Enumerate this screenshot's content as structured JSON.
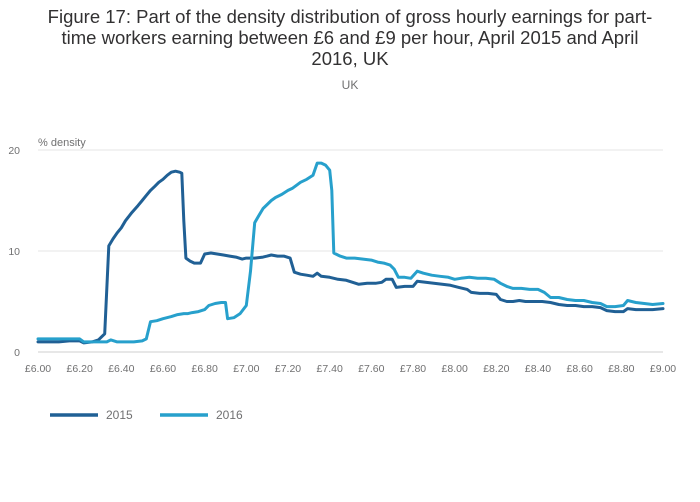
{
  "title_lines": [
    "Figure 17: Part of the density distribution of gross hourly earnings for part-",
    "time workers earning between £6 and £9 per hour, April 2015 and April",
    "2016, UK"
  ],
  "subtitle": "UK",
  "chart_data": {
    "type": "line",
    "title": "Figure 17: Part of the density distribution of gross hourly earnings for part-time workers earning between £6 and £9 per hour, April 2015 and April 2016, UK",
    "subtitle": "UK",
    "xlabel": "",
    "ylabel": "% density",
    "xlim": [
      6.0,
      9.0
    ],
    "ylim": [
      0,
      20
    ],
    "x_ticks": [
      6.0,
      6.2,
      6.4,
      6.6,
      6.8,
      7.0,
      7.2,
      7.4,
      7.6,
      7.8,
      8.0,
      8.2,
      8.4,
      8.6,
      8.8,
      9.0
    ],
    "x_tick_labels": [
      "£6.00",
      "£6.20",
      "£6.40",
      "£6.60",
      "£6.80",
      "£7.00",
      "£7.20",
      "£7.40",
      "£7.60",
      "£7.80",
      "£8.00",
      "£8.20",
      "£8.40",
      "£8.60",
      "£8.80",
      "£9.00"
    ],
    "y_ticks": [
      0,
      10,
      20
    ],
    "y_tick_labels": [
      "0",
      "10",
      "20"
    ],
    "grid": true,
    "legend_position": "bottom-left",
    "series": [
      {
        "name": "2015",
        "color": "#206095",
        "points": [
          [
            6.0,
            1.0
          ],
          [
            6.05,
            1.0
          ],
          [
            6.1,
            1.0
          ],
          [
            6.15,
            1.1
          ],
          [
            6.2,
            1.1
          ],
          [
            6.22,
            0.9
          ],
          [
            6.26,
            1.0
          ],
          [
            6.29,
            1.2
          ],
          [
            6.32,
            1.8
          ],
          [
            6.34,
            10.5
          ],
          [
            6.36,
            11.2
          ],
          [
            6.38,
            11.8
          ],
          [
            6.4,
            12.3
          ],
          [
            6.42,
            13.0
          ],
          [
            6.45,
            13.8
          ],
          [
            6.48,
            14.5
          ],
          [
            6.5,
            15.0
          ],
          [
            6.52,
            15.5
          ],
          [
            6.54,
            16.0
          ],
          [
            6.56,
            16.4
          ],
          [
            6.58,
            16.8
          ],
          [
            6.6,
            17.1
          ],
          [
            6.62,
            17.5
          ],
          [
            6.64,
            17.8
          ],
          [
            6.66,
            17.9
          ],
          [
            6.68,
            17.8
          ],
          [
            6.69,
            17.7
          ],
          [
            6.7,
            13.0
          ],
          [
            6.71,
            9.3
          ],
          [
            6.73,
            9.0
          ],
          [
            6.75,
            8.8
          ],
          [
            6.78,
            8.8
          ],
          [
            6.8,
            9.7
          ],
          [
            6.83,
            9.8
          ],
          [
            6.86,
            9.7
          ],
          [
            6.89,
            9.6
          ],
          [
            6.92,
            9.5
          ],
          [
            6.95,
            9.4
          ],
          [
            6.98,
            9.2
          ],
          [
            7.0,
            9.3
          ],
          [
            7.04,
            9.3
          ],
          [
            7.08,
            9.4
          ],
          [
            7.1,
            9.5
          ],
          [
            7.12,
            9.6
          ],
          [
            7.15,
            9.5
          ],
          [
            7.18,
            9.5
          ],
          [
            7.21,
            9.3
          ],
          [
            7.23,
            7.9
          ],
          [
            7.26,
            7.7
          ],
          [
            7.29,
            7.6
          ],
          [
            7.32,
            7.5
          ],
          [
            7.34,
            7.8
          ],
          [
            7.36,
            7.5
          ],
          [
            7.4,
            7.4
          ],
          [
            7.44,
            7.2
          ],
          [
            7.48,
            7.1
          ],
          [
            7.51,
            6.9
          ],
          [
            7.54,
            6.7
          ],
          [
            7.58,
            6.8
          ],
          [
            7.62,
            6.8
          ],
          [
            7.65,
            6.9
          ],
          [
            7.67,
            7.2
          ],
          [
            7.7,
            7.2
          ],
          [
            7.72,
            6.4
          ],
          [
            7.76,
            6.5
          ],
          [
            7.8,
            6.5
          ],
          [
            7.82,
            7.0
          ],
          [
            7.86,
            6.9
          ],
          [
            7.9,
            6.8
          ],
          [
            7.94,
            6.7
          ],
          [
            7.98,
            6.6
          ],
          [
            8.02,
            6.4
          ],
          [
            8.06,
            6.2
          ],
          [
            8.08,
            5.9
          ],
          [
            8.12,
            5.8
          ],
          [
            8.16,
            5.8
          ],
          [
            8.2,
            5.7
          ],
          [
            8.22,
            5.2
          ],
          [
            8.25,
            5.0
          ],
          [
            8.28,
            5.0
          ],
          [
            8.31,
            5.1
          ],
          [
            8.34,
            5.0
          ],
          [
            8.38,
            5.0
          ],
          [
            8.42,
            5.0
          ],
          [
            8.46,
            4.9
          ],
          [
            8.5,
            4.7
          ],
          [
            8.54,
            4.6
          ],
          [
            8.58,
            4.6
          ],
          [
            8.62,
            4.5
          ],
          [
            8.66,
            4.5
          ],
          [
            8.7,
            4.4
          ],
          [
            8.73,
            4.1
          ],
          [
            8.77,
            4.0
          ],
          [
            8.81,
            4.0
          ],
          [
            8.83,
            4.3
          ],
          [
            8.87,
            4.2
          ],
          [
            8.91,
            4.2
          ],
          [
            8.95,
            4.2
          ],
          [
            9.0,
            4.3
          ]
        ]
      },
      {
        "name": "2016",
        "color": "#27a0cc",
        "points": [
          [
            6.0,
            1.3
          ],
          [
            6.05,
            1.3
          ],
          [
            6.1,
            1.3
          ],
          [
            6.15,
            1.3
          ],
          [
            6.2,
            1.3
          ],
          [
            6.22,
            1.0
          ],
          [
            6.26,
            1.0
          ],
          [
            6.3,
            1.0
          ],
          [
            6.33,
            1.0
          ],
          [
            6.35,
            1.2
          ],
          [
            6.38,
            1.0
          ],
          [
            6.42,
            1.0
          ],
          [
            6.46,
            1.0
          ],
          [
            6.5,
            1.1
          ],
          [
            6.52,
            1.3
          ],
          [
            6.54,
            3.0
          ],
          [
            6.57,
            3.1
          ],
          [
            6.6,
            3.3
          ],
          [
            6.64,
            3.5
          ],
          [
            6.67,
            3.7
          ],
          [
            6.7,
            3.8
          ],
          [
            6.72,
            3.8
          ],
          [
            6.74,
            3.9
          ],
          [
            6.77,
            4.0
          ],
          [
            6.8,
            4.2
          ],
          [
            6.82,
            4.6
          ],
          [
            6.85,
            4.8
          ],
          [
            6.88,
            4.9
          ],
          [
            6.9,
            4.9
          ],
          [
            6.91,
            3.3
          ],
          [
            6.94,
            3.4
          ],
          [
            6.97,
            3.8
          ],
          [
            7.0,
            4.6
          ],
          [
            7.02,
            8.0
          ],
          [
            7.04,
            12.8
          ],
          [
            7.06,
            13.5
          ],
          [
            7.08,
            14.2
          ],
          [
            7.1,
            14.6
          ],
          [
            7.12,
            15.0
          ],
          [
            7.14,
            15.3
          ],
          [
            7.17,
            15.6
          ],
          [
            7.2,
            16.0
          ],
          [
            7.22,
            16.2
          ],
          [
            7.24,
            16.5
          ],
          [
            7.26,
            16.8
          ],
          [
            7.29,
            17.1
          ],
          [
            7.32,
            17.5
          ],
          [
            7.34,
            18.7
          ],
          [
            7.36,
            18.7
          ],
          [
            7.38,
            18.5
          ],
          [
            7.4,
            18.0
          ],
          [
            7.41,
            16.0
          ],
          [
            7.42,
            9.8
          ],
          [
            7.45,
            9.5
          ],
          [
            7.48,
            9.3
          ],
          [
            7.52,
            9.3
          ],
          [
            7.56,
            9.2
          ],
          [
            7.6,
            9.1
          ],
          [
            7.63,
            8.9
          ],
          [
            7.66,
            8.8
          ],
          [
            7.69,
            8.6
          ],
          [
            7.71,
            8.2
          ],
          [
            7.73,
            7.4
          ],
          [
            7.76,
            7.4
          ],
          [
            7.79,
            7.3
          ],
          [
            7.82,
            8.0
          ],
          [
            7.85,
            7.8
          ],
          [
            7.89,
            7.6
          ],
          [
            7.93,
            7.5
          ],
          [
            7.97,
            7.4
          ],
          [
            8.0,
            7.2
          ],
          [
            8.03,
            7.3
          ],
          [
            8.07,
            7.4
          ],
          [
            8.11,
            7.3
          ],
          [
            8.15,
            7.3
          ],
          [
            8.19,
            7.2
          ],
          [
            8.22,
            6.8
          ],
          [
            8.25,
            6.5
          ],
          [
            8.28,
            6.3
          ],
          [
            8.32,
            6.3
          ],
          [
            8.36,
            6.2
          ],
          [
            8.4,
            6.2
          ],
          [
            8.43,
            5.9
          ],
          [
            8.46,
            5.4
          ],
          [
            8.5,
            5.4
          ],
          [
            8.54,
            5.2
          ],
          [
            8.58,
            5.1
          ],
          [
            8.62,
            5.1
          ],
          [
            8.66,
            4.9
          ],
          [
            8.7,
            4.8
          ],
          [
            8.73,
            4.5
          ],
          [
            8.77,
            4.5
          ],
          [
            8.81,
            4.6
          ],
          [
            8.83,
            5.1
          ],
          [
            8.87,
            4.9
          ],
          [
            8.91,
            4.8
          ],
          [
            8.95,
            4.7
          ],
          [
            9.0,
            4.8
          ]
        ]
      }
    ]
  }
}
